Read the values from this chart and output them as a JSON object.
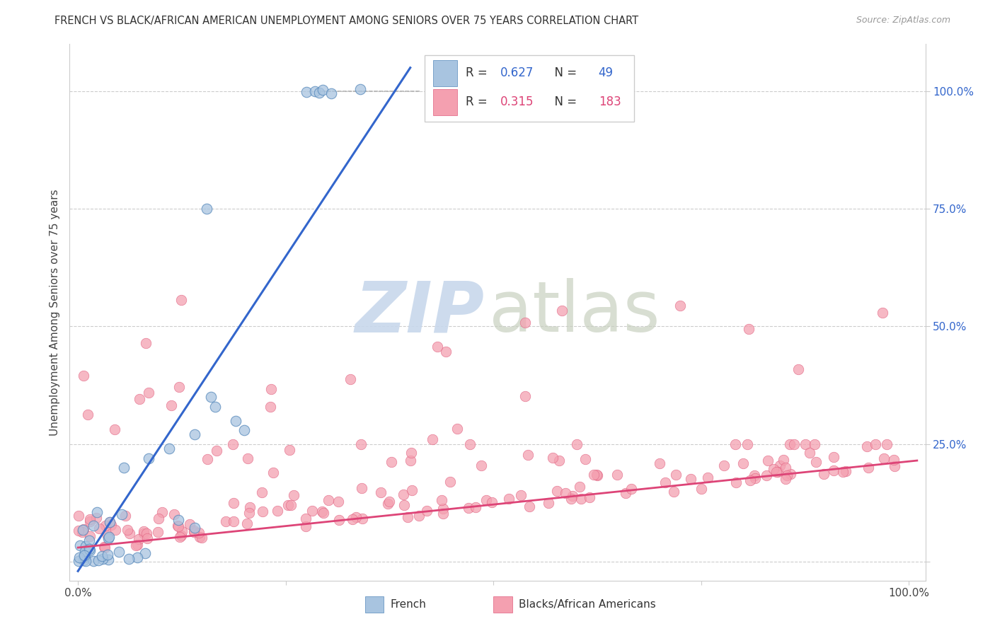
{
  "title": "FRENCH VS BLACK/AFRICAN AMERICAN UNEMPLOYMENT AMONG SENIORS OVER 75 YEARS CORRELATION CHART",
  "source": "Source: ZipAtlas.com",
  "ylabel": "Unemployment Among Seniors over 75 years",
  "legend_label1": "French",
  "legend_label2": "Blacks/African Americans",
  "r1": 0.627,
  "n1": 49,
  "r2": 0.315,
  "n2": 183,
  "color_blue_fill": "#A8C4E0",
  "color_blue_edge": "#5588BB",
  "color_pink_fill": "#F4A0B0",
  "color_pink_edge": "#E06080",
  "color_blue_line": "#3366CC",
  "color_pink_line": "#DD4477",
  "color_grid": "#CCCCCC",
  "color_title": "#333333",
  "color_source": "#999999",
  "color_right_tick": "#3366CC",
  "watermark_zip_color": "#C8D8EC",
  "watermark_atlas_color": "#C8D0C0",
  "seed_french": 42,
  "seed_black": 99
}
